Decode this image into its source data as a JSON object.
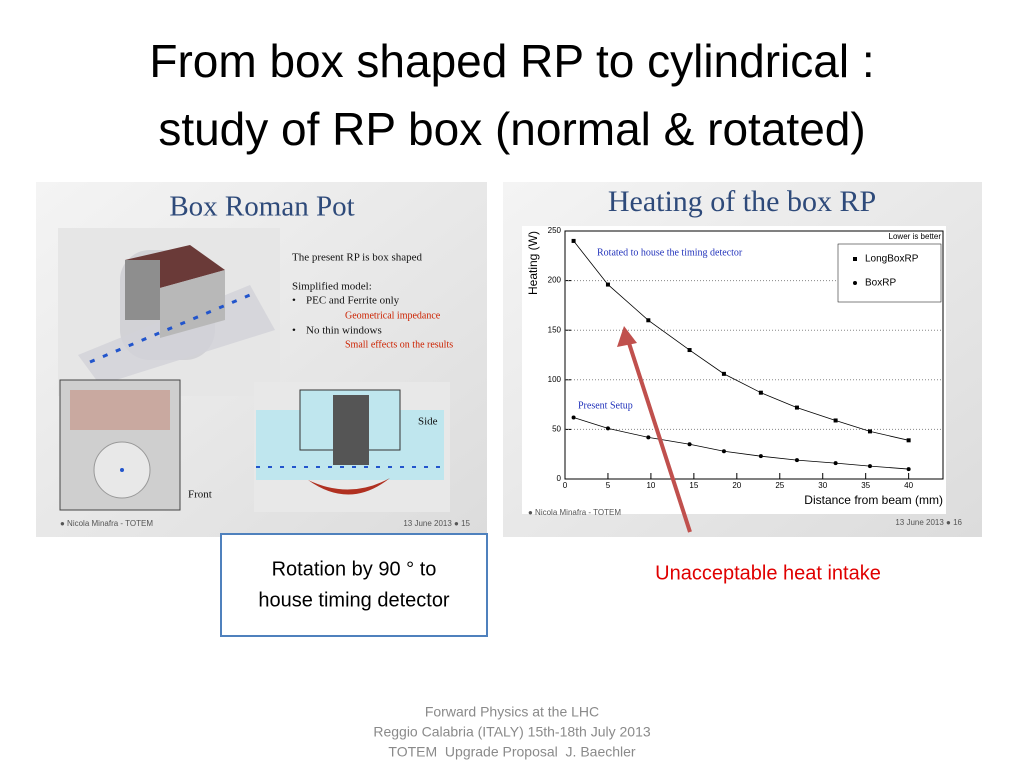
{
  "title_lines": [
    "From box shaped RP to cylindrical :",
    "study of RP box (normal & rotated)"
  ],
  "left_panel": {
    "heading": "Box Roman Pot",
    "notes": [
      "The present RP is box shaped",
      "Simplified model:"
    ],
    "bullets": [
      {
        "text": "PEC and Ferrite only",
        "remark": "Geometrical impedance"
      },
      {
        "text": "No thin windows",
        "remark": "Small effects on the results"
      }
    ],
    "view_labels": [
      "Side",
      "Front"
    ],
    "footer_left": "● Nicola Minafra - TOTEM",
    "footer_right": "13 June 2013 ● 15"
  },
  "right_panel": {
    "heading": "Heating of the box RP",
    "footer_left": "● Nicola Minafra - TOTEM",
    "footer_right": "13 June 2013 ● 16",
    "chart": {
      "type": "line",
      "x_label": "Distance from beam (mm)",
      "y_label": "Heating (W)",
      "note": "Lower is better",
      "annotations": [
        "Rotated to house the timing detector",
        "Present Setup"
      ],
      "xlim": [
        0,
        44
      ],
      "xticks": [
        0,
        5,
        10,
        15,
        20,
        25,
        30,
        35,
        40
      ],
      "ylim": [
        0,
        250
      ],
      "yticks": [
        0,
        50,
        100,
        150,
        200,
        250
      ],
      "grid": true,
      "series": [
        {
          "name": "LongBoxRP",
          "color": "#000000",
          "marker": "square",
          "x": [
            1,
            5,
            9.7,
            14.5,
            18.5,
            22.8,
            27,
            31.5,
            35.5,
            40
          ],
          "values": [
            240,
            196,
            160,
            130,
            106,
            87,
            72,
            59,
            48,
            39
          ]
        },
        {
          "name": "BoxRP",
          "color": "#000000",
          "marker": "circle",
          "x": [
            1,
            5,
            9.7,
            14.5,
            18.5,
            22.8,
            27,
            31.5,
            35.5,
            40
          ],
          "values": [
            62,
            51,
            42,
            35,
            28,
            23,
            19,
            16,
            13,
            10
          ]
        }
      ]
    }
  },
  "callout_lines": [
    "Rotation by 90 ° to",
    "house timing detector"
  ],
  "annotation": "Unacceptable heat intake",
  "footer_lines": [
    "Forward Physics at the LHC",
    "Reggio Calabria (ITALY) 15th-18th July 2013",
    "TOTEM  Upgrade Proposal  J. Baechler"
  ]
}
